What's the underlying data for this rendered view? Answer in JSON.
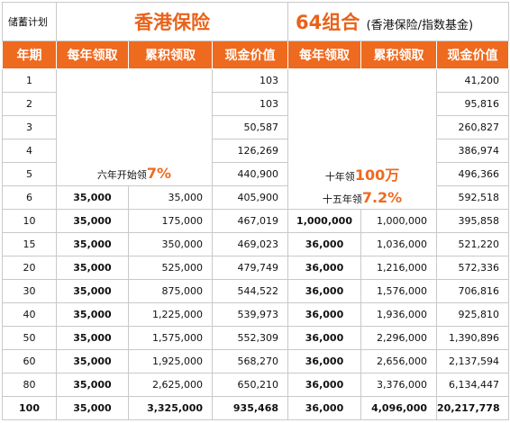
{
  "header": {
    "plan_label": "储蓄计划",
    "title_a": "香港保险",
    "title_b_main": "64组合",
    "title_b_sub": "(香港保险/指数基金)"
  },
  "columns": [
    "年期",
    "每年领取",
    "累积领取",
    "现金价值",
    "每年领取",
    "累积领取",
    "现金价值"
  ],
  "notes": {
    "a_text": "六年开始领",
    "a_hl": "7%",
    "b1_text": "十年领",
    "b1_hl": "100万",
    "b2_text": "十五年领",
    "b2_hl": "7.2%"
  },
  "rows": [
    {
      "year": "1",
      "a_annual": "",
      "a_cum": "",
      "a_cash": "103",
      "b_annual": "",
      "b_cum": "",
      "b_cash": "41,200"
    },
    {
      "year": "2",
      "a_annual": "",
      "a_cum": "",
      "a_cash": "103",
      "b_annual": "",
      "b_cum": "",
      "b_cash": "95,816"
    },
    {
      "year": "3",
      "a_annual": "",
      "a_cum": "",
      "a_cash": "50,587",
      "b_annual": "",
      "b_cum": "",
      "b_cash": "260,827"
    },
    {
      "year": "4",
      "a_annual": "",
      "a_cum": "",
      "a_cash": "126,269",
      "b_annual": "",
      "b_cum": "",
      "b_cash": "386,974"
    },
    {
      "year": "5",
      "a_annual": "",
      "a_cum": "",
      "a_cash": "440,900",
      "b_annual": "",
      "b_cum": "",
      "b_cash": "496,366"
    },
    {
      "year": "6",
      "a_annual": "35,000",
      "a_cum": "35,000",
      "a_cash": "405,900",
      "b_annual": "",
      "b_cum": "",
      "b_cash": "592,518"
    },
    {
      "year": "10",
      "a_annual": "35,000",
      "a_cum": "175,000",
      "a_cash": "467,019",
      "b_annual": "1,000,000",
      "b_cum": "1,000,000",
      "b_cash": "395,858"
    },
    {
      "year": "15",
      "a_annual": "35,000",
      "a_cum": "350,000",
      "a_cash": "469,023",
      "b_annual": "36,000",
      "b_cum": "1,036,000",
      "b_cash": "521,220"
    },
    {
      "year": "20",
      "a_annual": "35,000",
      "a_cum": "525,000",
      "a_cash": "479,749",
      "b_annual": "36,000",
      "b_cum": "1,216,000",
      "b_cash": "572,336"
    },
    {
      "year": "30",
      "a_annual": "35,000",
      "a_cum": "875,000",
      "a_cash": "544,522",
      "b_annual": "36,000",
      "b_cum": "1,576,000",
      "b_cash": "706,816"
    },
    {
      "year": "40",
      "a_annual": "35,000",
      "a_cum": "1,225,000",
      "a_cash": "539,973",
      "b_annual": "36,000",
      "b_cum": "1,936,000",
      "b_cash": "925,810"
    },
    {
      "year": "50",
      "a_annual": "35,000",
      "a_cum": "1,575,000",
      "a_cash": "552,309",
      "b_annual": "36,000",
      "b_cum": "2,296,000",
      "b_cash": "1,390,896"
    },
    {
      "year": "60",
      "a_annual": "35,000",
      "a_cum": "1,925,000",
      "a_cash": "568,270",
      "b_annual": "36,000",
      "b_cum": "2,656,000",
      "b_cash": "2,137,594"
    },
    {
      "year": "80",
      "a_annual": "35,000",
      "a_cum": "2,625,000",
      "a_cash": "650,210",
      "b_annual": "36,000",
      "b_cum": "3,376,000",
      "b_cash": "6,134,447"
    },
    {
      "year": "100",
      "a_annual": "35,000",
      "a_cum": "3,325,000",
      "a_cash": "935,468",
      "b_annual": "36,000",
      "b_cum": "4,096,000",
      "b_cash": "20,217,778"
    }
  ]
}
